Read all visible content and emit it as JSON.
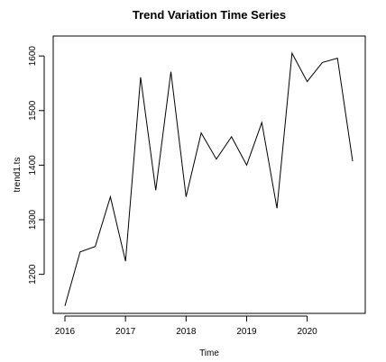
{
  "chart_data": {
    "type": "line",
    "title": "Trend Variation Time Series",
    "xlabel": "Time",
    "ylabel": "trend1.ts",
    "xlim": [
      2016,
      2020.75
    ],
    "ylim": [
      1140,
      1625
    ],
    "x_ticks": [
      2016,
      2017,
      2018,
      2019,
      2020
    ],
    "x_tick_labels": [
      "2016",
      "2017",
      "2018",
      "2019",
      "2020"
    ],
    "y_ticks": [
      1200,
      1300,
      1400,
      1500,
      1600
    ],
    "y_tick_labels": [
      "1200",
      "1300",
      "1400",
      "1500",
      "1600"
    ],
    "grid": false,
    "series": [
      {
        "x": [
          2016.0,
          2016.25,
          2016.5,
          2016.75,
          2017.0,
          2017.25,
          2017.5,
          2017.75,
          2018.0,
          2018.25,
          2018.5,
          2018.75,
          2019.0,
          2019.25,
          2019.5,
          2019.75,
          2020.0,
          2020.25,
          2020.5,
          2020.75
        ],
        "values": [
          1142,
          1241,
          1251,
          1342,
          1224,
          1561,
          1354,
          1571,
          1342,
          1459,
          1411,
          1452,
          1400,
          1478,
          1321,
          1605,
          1553,
          1588,
          1596,
          1407
        ]
      }
    ],
    "color": "#000000"
  }
}
